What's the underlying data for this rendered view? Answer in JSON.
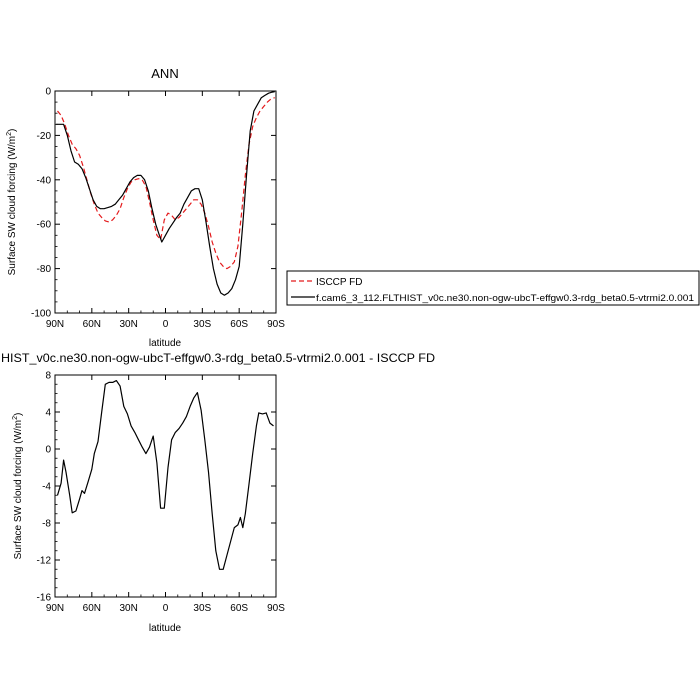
{
  "chart_data": [
    {
      "type": "line",
      "title": "ANN",
      "xlabel": "latitude",
      "ylabel": "Surface SW cloud forcing (W/m²)",
      "ylabel_main": "Surface SW cloud forcing (W/m",
      "ylabel_sup": "2",
      "ylabel_end": ")",
      "xlim": [
        90,
        -90
      ],
      "ylim": [
        -100,
        0
      ],
      "xticks": [
        90,
        60,
        30,
        0,
        -30,
        -60,
        -90
      ],
      "xtick_labels": [
        "90N",
        "60N",
        "30N",
        "0",
        "30S",
        "60S",
        "90S"
      ],
      "yticks": [
        0,
        -20,
        -40,
        -60,
        -80,
        -100
      ],
      "ytick_labels": [
        "0",
        "-20",
        "-40",
        "-60",
        "-80",
        "-100"
      ],
      "legend": {
        "placement": "right",
        "entries": [
          {
            "label": "ISCCP FD",
            "style": "dashed",
            "color": "#e41a1c"
          },
          {
            "label": "f.cam6_3_112.FLTHIST_v0c.ne30.non-ogw-ubcT-effgw0.3-rdg_beta0.5-vtrmi2.0.001",
            "style": "solid",
            "color": "#000000"
          }
        ]
      },
      "series": [
        {
          "name": "ISCCP FD",
          "color": "#e41a1c",
          "dash": true,
          "points": [
            [
              88,
              -9
            ],
            [
              85,
              -11
            ],
            [
              82,
              -15
            ],
            [
              79,
              -20
            ],
            [
              76,
              -24
            ],
            [
              73,
              -26
            ],
            [
              70,
              -29
            ],
            [
              67,
              -34
            ],
            [
              64,
              -40
            ],
            [
              61,
              -46
            ],
            [
              58,
              -51
            ],
            [
              55,
              -55
            ],
            [
              52,
              -57
            ],
            [
              49,
              -58.5
            ],
            [
              46,
              -59
            ],
            [
              43,
              -58
            ],
            [
              40,
              -56
            ],
            [
              37,
              -53
            ],
            [
              34,
              -48
            ],
            [
              31,
              -44
            ],
            [
              28,
              -41
            ],
            [
              25,
              -40
            ],
            [
              22,
              -39.5
            ],
            [
              19,
              -40
            ],
            [
              16,
              -43
            ],
            [
              13,
              -50
            ],
            [
              10,
              -58
            ],
            [
              7,
              -65
            ],
            [
              4,
              -67
            ],
            [
              1,
              -58
            ],
            [
              -2,
              -55
            ],
            [
              -5,
              -56
            ],
            [
              -8,
              -58
            ],
            [
              -11,
              -57
            ],
            [
              -14,
              -55
            ],
            [
              -17,
              -53
            ],
            [
              -20,
              -51
            ],
            [
              -23,
              -49
            ],
            [
              -26,
              -49
            ],
            [
              -29,
              -51
            ],
            [
              -32,
              -55
            ],
            [
              -35,
              -61
            ],
            [
              -38,
              -68
            ],
            [
              -41,
              -73
            ],
            [
              -44,
              -77
            ],
            [
              -47,
              -79
            ],
            [
              -50,
              -80
            ],
            [
              -53,
              -79
            ],
            [
              -56,
              -77
            ],
            [
              -59,
              -70
            ],
            [
              -62,
              -55
            ],
            [
              -65,
              -38
            ],
            [
              -68,
              -24
            ],
            [
              -71,
              -16
            ],
            [
              -74,
              -12
            ],
            [
              -77,
              -9
            ],
            [
              -80,
              -7
            ],
            [
              -83,
              -5
            ],
            [
              -86,
              -3.5
            ],
            [
              -89,
              -3
            ]
          ]
        },
        {
          "name": "f.cam6_3_112.FLTHIST_v0c.ne30.non-ogw-ubcT-effgw0.3-rdg_beta0.5-vtrmi2.0.001",
          "color": "#000000",
          "dash": false,
          "points": [
            [
              89,
              -15
            ],
            [
              86,
              -15
            ],
            [
              83,
              -15
            ],
            [
              80,
              -20
            ],
            [
              77,
              -27
            ],
            [
              74,
              -32
            ],
            [
              71,
              -33
            ],
            [
              68,
              -35
            ],
            [
              65,
              -39
            ],
            [
              62,
              -44
            ],
            [
              59,
              -49
            ],
            [
              56,
              -52
            ],
            [
              53,
              -53
            ],
            [
              50,
              -53
            ],
            [
              47,
              -52.5
            ],
            [
              44,
              -52
            ],
            [
              41,
              -51
            ],
            [
              38,
              -49
            ],
            [
              35,
              -47
            ],
            [
              32,
              -44
            ],
            [
              29,
              -41
            ],
            [
              26,
              -39
            ],
            [
              23,
              -38
            ],
            [
              20,
              -38
            ],
            [
              17,
              -40
            ],
            [
              14,
              -45
            ],
            [
              11,
              -53
            ],
            [
              8,
              -60
            ],
            [
              5,
              -65
            ],
            [
              3,
              -68
            ],
            [
              0,
              -65
            ],
            [
              -3,
              -62
            ],
            [
              -6,
              -59.5
            ],
            [
              -9,
              -57
            ],
            [
              -12,
              -55
            ],
            [
              -15,
              -51
            ],
            [
              -18,
              -48
            ],
            [
              -21,
              -45
            ],
            [
              -24,
              -44
            ],
            [
              -27,
              -44
            ],
            [
              -30,
              -49
            ],
            [
              -33,
              -59
            ],
            [
              -36,
              -70
            ],
            [
              -39,
              -80
            ],
            [
              -42,
              -87
            ],
            [
              -45,
              -91
            ],
            [
              -48,
              -92
            ],
            [
              -51,
              -91
            ],
            [
              -54,
              -89
            ],
            [
              -57,
              -85
            ],
            [
              -60,
              -79
            ],
            [
              -63,
              -60
            ],
            [
              -66,
              -38
            ],
            [
              -69,
              -18
            ],
            [
              -72,
              -9
            ],
            [
              -75,
              -6
            ],
            [
              -78,
              -3
            ],
            [
              -81,
              -2
            ],
            [
              -84,
              -1
            ],
            [
              -87,
              -0.5
            ],
            [
              -89,
              -0.3
            ]
          ]
        }
      ]
    },
    {
      "type": "line",
      "title": "HIST_v0c.ne30.non-ogw-ubcT-effgw0.3-rdg_beta0.5-vtrmi2.0.001 - ISCCP FD",
      "xlabel": "latitude",
      "ylabel": "Surface SW cloud forcing (W/m²)",
      "ylabel_main": "Surface SW cloud forcing (W/m",
      "ylabel_sup": "2",
      "ylabel_end": ")",
      "xlim": [
        90,
        -90
      ],
      "ylim": [
        -16,
        8
      ],
      "xticks": [
        90,
        60,
        30,
        0,
        -30,
        -60,
        -90
      ],
      "xtick_labels": [
        "90N",
        "60N",
        "30N",
        "0",
        "30S",
        "60S",
        "90S"
      ],
      "yticks": [
        8,
        4,
        0,
        -4,
        -8,
        -12,
        -16
      ],
      "ytick_labels": [
        "8",
        "4",
        "0",
        "-4",
        "-8",
        "-12",
        "-16"
      ],
      "series": [
        {
          "color": "#000000",
          "dash": false,
          "points": [
            [
              88,
              -5
            ],
            [
              85,
              -3.7
            ],
            [
              83,
              -1.2
            ],
            [
              81,
              -2.5
            ],
            [
              78,
              -5
            ],
            [
              76,
              -6.9
            ],
            [
              73,
              -6.7
            ],
            [
              70,
              -5.4
            ],
            [
              68,
              -4.5
            ],
            [
              66,
              -4.8
            ],
            [
              63,
              -3.5
            ],
            [
              60,
              -2.2
            ],
            [
              58,
              -0.5
            ],
            [
              55,
              0.8
            ],
            [
              52,
              4
            ],
            [
              49,
              7
            ],
            [
              46,
              7.2
            ],
            [
              43,
              7.2
            ],
            [
              40,
              7.4
            ],
            [
              37,
              6.8
            ],
            [
              34,
              4.6
            ],
            [
              31,
              3.8
            ],
            [
              28,
              2.5
            ],
            [
              25,
              1.8
            ],
            [
              22,
              1.0
            ],
            [
              19,
              0.2
            ],
            [
              16,
              -0.5
            ],
            [
              13,
              0.2
            ],
            [
              10,
              1.4
            ],
            [
              7,
              -1.5
            ],
            [
              4,
              -6.4
            ],
            [
              1,
              -6.4
            ],
            [
              -2,
              -2
            ],
            [
              -5,
              1
            ],
            [
              -8,
              1.8
            ],
            [
              -11,
              2.2
            ],
            [
              -14,
              2.8
            ],
            [
              -17,
              3.5
            ],
            [
              -20,
              4.6
            ],
            [
              -23,
              5.5
            ],
            [
              -26,
              6.1
            ],
            [
              -29,
              4.2
            ],
            [
              -32,
              1
            ],
            [
              -35,
              -2.5
            ],
            [
              -38,
              -7
            ],
            [
              -41,
              -11
            ],
            [
              -44,
              -13
            ],
            [
              -47,
              -13
            ],
            [
              -50,
              -11.5
            ],
            [
              -53,
              -10
            ],
            [
              -56,
              -8.5
            ],
            [
              -59,
              -8.2
            ],
            [
              -61,
              -7.4
            ],
            [
              -63,
              -8.5
            ],
            [
              -65,
              -7
            ],
            [
              -68,
              -3.8
            ],
            [
              -71,
              -0.5
            ],
            [
              -74,
              2.5
            ],
            [
              -76,
              3.9
            ],
            [
              -79,
              3.8
            ],
            [
              -82,
              3.9
            ],
            [
              -85,
              2.8
            ],
            [
              -88,
              2.5
            ]
          ]
        }
      ]
    }
  ]
}
